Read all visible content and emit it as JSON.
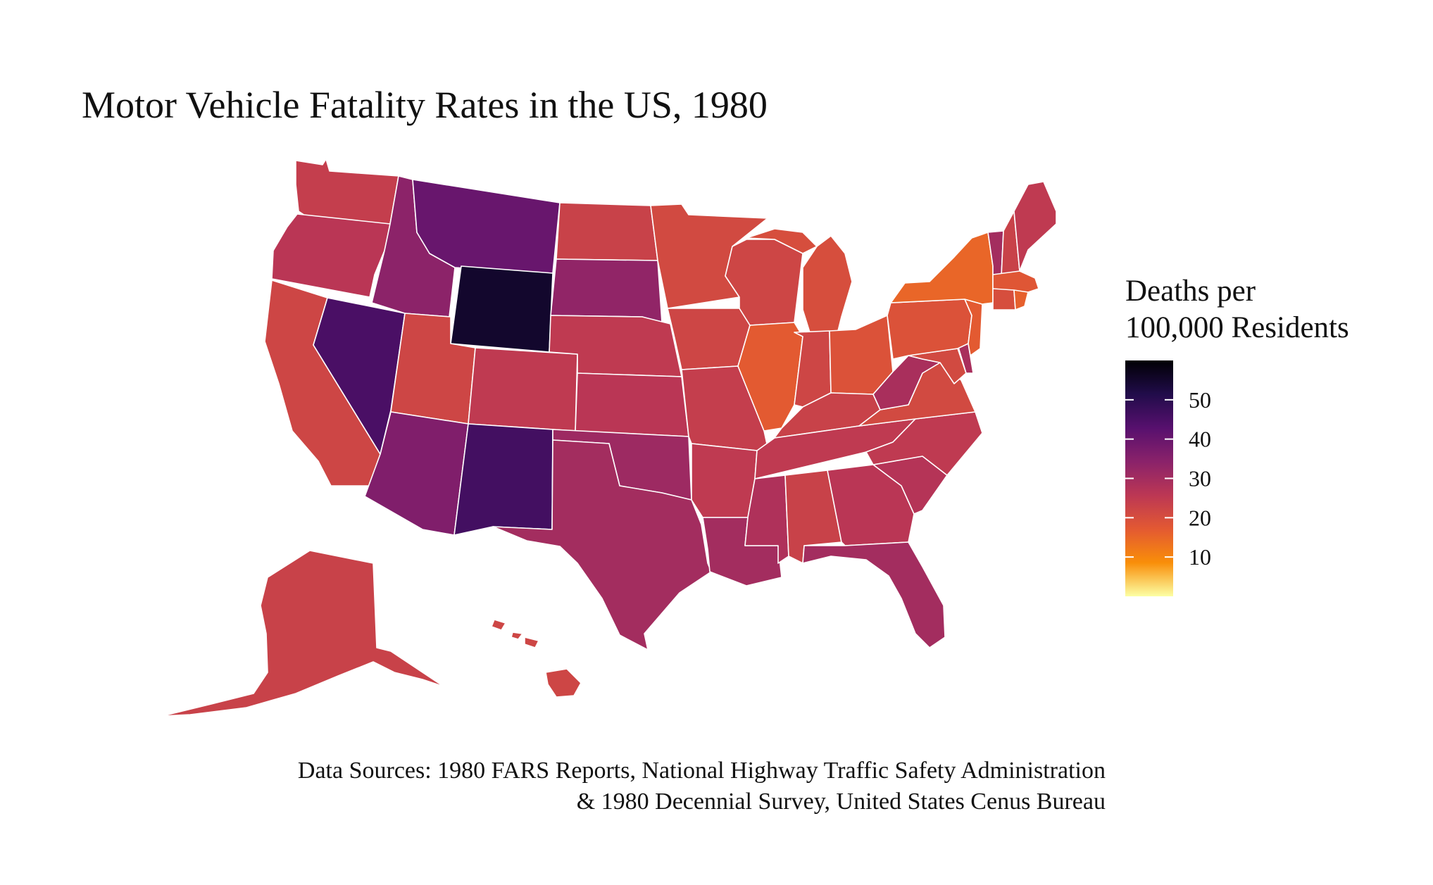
{
  "title": "Motor Vehicle Fatality Rates in the US, 1980",
  "legend": {
    "title_lines": [
      "Deaths per",
      "100,000 Residents"
    ],
    "ticks": [
      10,
      20,
      30,
      40,
      50
    ],
    "range": [
      0,
      60
    ],
    "colors": [
      "#fcffa4",
      "#f98e09",
      "#e35932",
      "#bc3754",
      "#8a226a",
      "#57106e",
      "#210c4a",
      "#000004"
    ]
  },
  "caption_lines": [
    "Data Sources: 1980 FARS Reports, National Highway Traffic Safety Administration",
    "& 1980 Decennial Survey, United States Cenus Bureau"
  ],
  "states": {
    "WA": 24,
    "OR": 26,
    "CA": 22,
    "NV": 45,
    "ID": 34,
    "MT": 40,
    "WY": 55,
    "UT": 22,
    "AZ": 36,
    "CO": 25,
    "NM": 46,
    "ND": 23,
    "SD": 33,
    "NE": 25,
    "KS": 26,
    "OK": 31,
    "TX": 30,
    "MN": 21,
    "IA": 22,
    "MO": 24,
    "AR": 25,
    "LA": 30,
    "WI": 22,
    "IL": 17,
    "MI": 20,
    "IN": 22,
    "OH": 19,
    "KY": 23,
    "TN": 25,
    "MS": 28,
    "AL": 23,
    "GA": 26,
    "FL": 30,
    "SC": 27,
    "NC": 25,
    "VA": 21,
    "WV": 29,
    "PA": 19,
    "NY": 15,
    "ME": 25,
    "VT": 30,
    "NH": 23,
    "MA": 18,
    "CT": 20,
    "RI": 16,
    "NJ": 17,
    "DE": 29,
    "MD": 21,
    "AK": 23,
    "HI": 22
  }
}
